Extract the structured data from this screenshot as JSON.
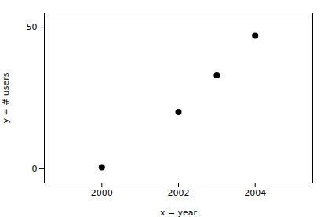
{
  "chart_data": {
    "type": "scatter",
    "x": [
      2000,
      2002,
      2003,
      2004
    ],
    "y": [
      0.5,
      20.0,
      33.0,
      47.0
    ],
    "xlabel": "x = year",
    "ylabel": "y = # users",
    "xlim": [
      1998.5,
      2005.5
    ],
    "ylim": [
      -5,
      55
    ],
    "xticks": [
      2000,
      2002,
      2004
    ],
    "yticks": [
      0,
      50
    ],
    "color": "black",
    "grid": false
  }
}
